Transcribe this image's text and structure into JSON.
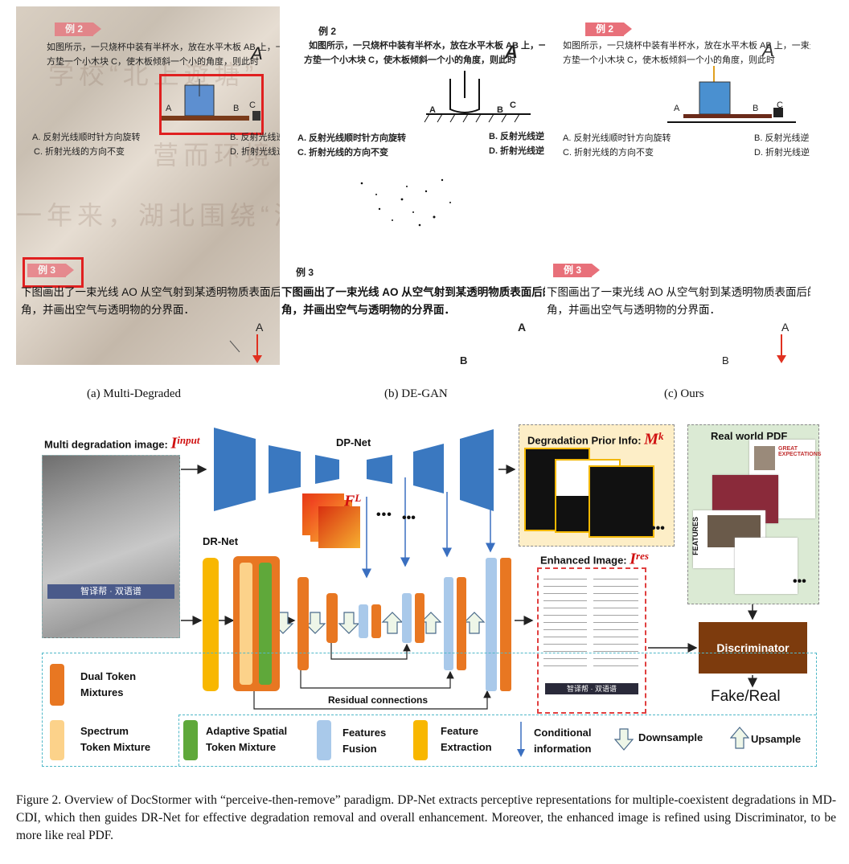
{
  "panels": [
    {
      "label": "(a) Multi-Degraded"
    },
    {
      "label": "(b) DE-GAN"
    },
    {
      "label": "(c) Ours"
    }
  ],
  "problem": {
    "badge1": "例 2",
    "badge2": "例 3",
    "badge_degan": "例 3",
    "line1": "如图所示，一只烧杯中装有半杯水，放在水平木板 AB 上，一束光线",
    "line2": "方垫一个小木块 C，使木板倾斜一个小的角度，则此时",
    "handwrite": "A",
    "opt_a": "A. 反射光线顺时针方向旋转",
    "opt_b": "B. 反射光线逆",
    "opt_c": "C. 折射光线的方向不变",
    "opt_d": "D. 折射光线逆",
    "ex3_line1": "下图画出了一束光线 AO 从空气射到某透明物质表面后的反",
    "ex3_line2": "角，并画出空气与透明物的分界面．",
    "pt_a": "A",
    "pt_b": "B",
    "pt_c": "C",
    "pt_a_diagram": "A",
    "pt_b_cut": "B",
    "wm1": "学校“北上遊塘”",
    "wm2": "一年来，湖北围绕“清",
    "wm3": "营而环境"
  },
  "diagram": {
    "input_label": "Multi degradation image: ",
    "input_sym": "I",
    "input_sup": "input",
    "dpnet": "DP-Net",
    "drnet": "DR-Net",
    "fl_sym": "F",
    "fl_sup": "L",
    "prior_label": "Degradation Prior Info: ",
    "prior_sym": "M",
    "prior_sup": "k",
    "realpdf": "Real world PDF",
    "enhanced_label": "Enhanced Image: ",
    "enhanced_sym": "I",
    "enhanced_sup": "res",
    "discriminator": "Discriminator",
    "fakereal": "Fake/Real",
    "residual": "Residual connections",
    "ellipsis": "•••",
    "input_banner": "智译帮 · 双语谱",
    "enh_banner": "智译帮 · 双语谱",
    "features_side": "FEATURES",
    "great_exp": "GREAT EXPECTATIONS"
  },
  "legend": {
    "dual": "Dual Token\nMixtures",
    "spectrum": "Spectrum\nToken Mixture",
    "adaptive": "Adaptive Spatial\nToken Mixture",
    "fusion": "Features\nFusion",
    "extraction": "Feature\nExtraction",
    "conditional": "Conditional\ninformation",
    "down": "Downsample",
    "up": "Upsample"
  },
  "caption": "Figure 2.  Overview of DocStormer with “perceive-then-remove” paradigm.  DP-Net extracts perceptive representations for multiple-coexistent degradations in MD-CDI, which then guides DR-Net for effective degradation removal and overall enhancement. Moreover, the enhanced image is refined using Discriminator, to be more like real PDF.",
  "colors": {
    "encoder_blue": "#3a78c0",
    "dual_orange": "#e87722",
    "spectrum": "#fcd28a",
    "adaptive": "#5fa83a",
    "fusion": "#a9c9ea",
    "extraction": "#f8b700",
    "disc": "#7d3b0d",
    "red": "#e02020"
  }
}
